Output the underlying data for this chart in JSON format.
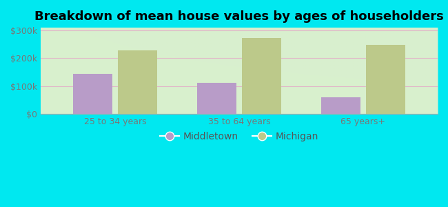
{
  "title": "Breakdown of mean house values by ages of householders",
  "categories": [
    "25 to 34 years",
    "35 to 64 years",
    "65 years+"
  ],
  "middletown_values": [
    143000,
    112000,
    60000
  ],
  "michigan_values": [
    228000,
    272000,
    248000
  ],
  "middletown_color": "#b89cc8",
  "michigan_color": "#bcc98a",
  "background_outer": "#00e8f0",
  "ylim": [
    0,
    310000
  ],
  "yticks": [
    0,
    100000,
    200000,
    300000
  ],
  "ytick_labels": [
    "$0",
    "$100k",
    "$200k",
    "$300k"
  ],
  "legend_labels": [
    "Middletown",
    "Michigan"
  ],
  "bar_width": 0.32,
  "title_fontsize": 13,
  "tick_fontsize": 9,
  "legend_fontsize": 10,
  "grid_color": "#e0b8c8"
}
